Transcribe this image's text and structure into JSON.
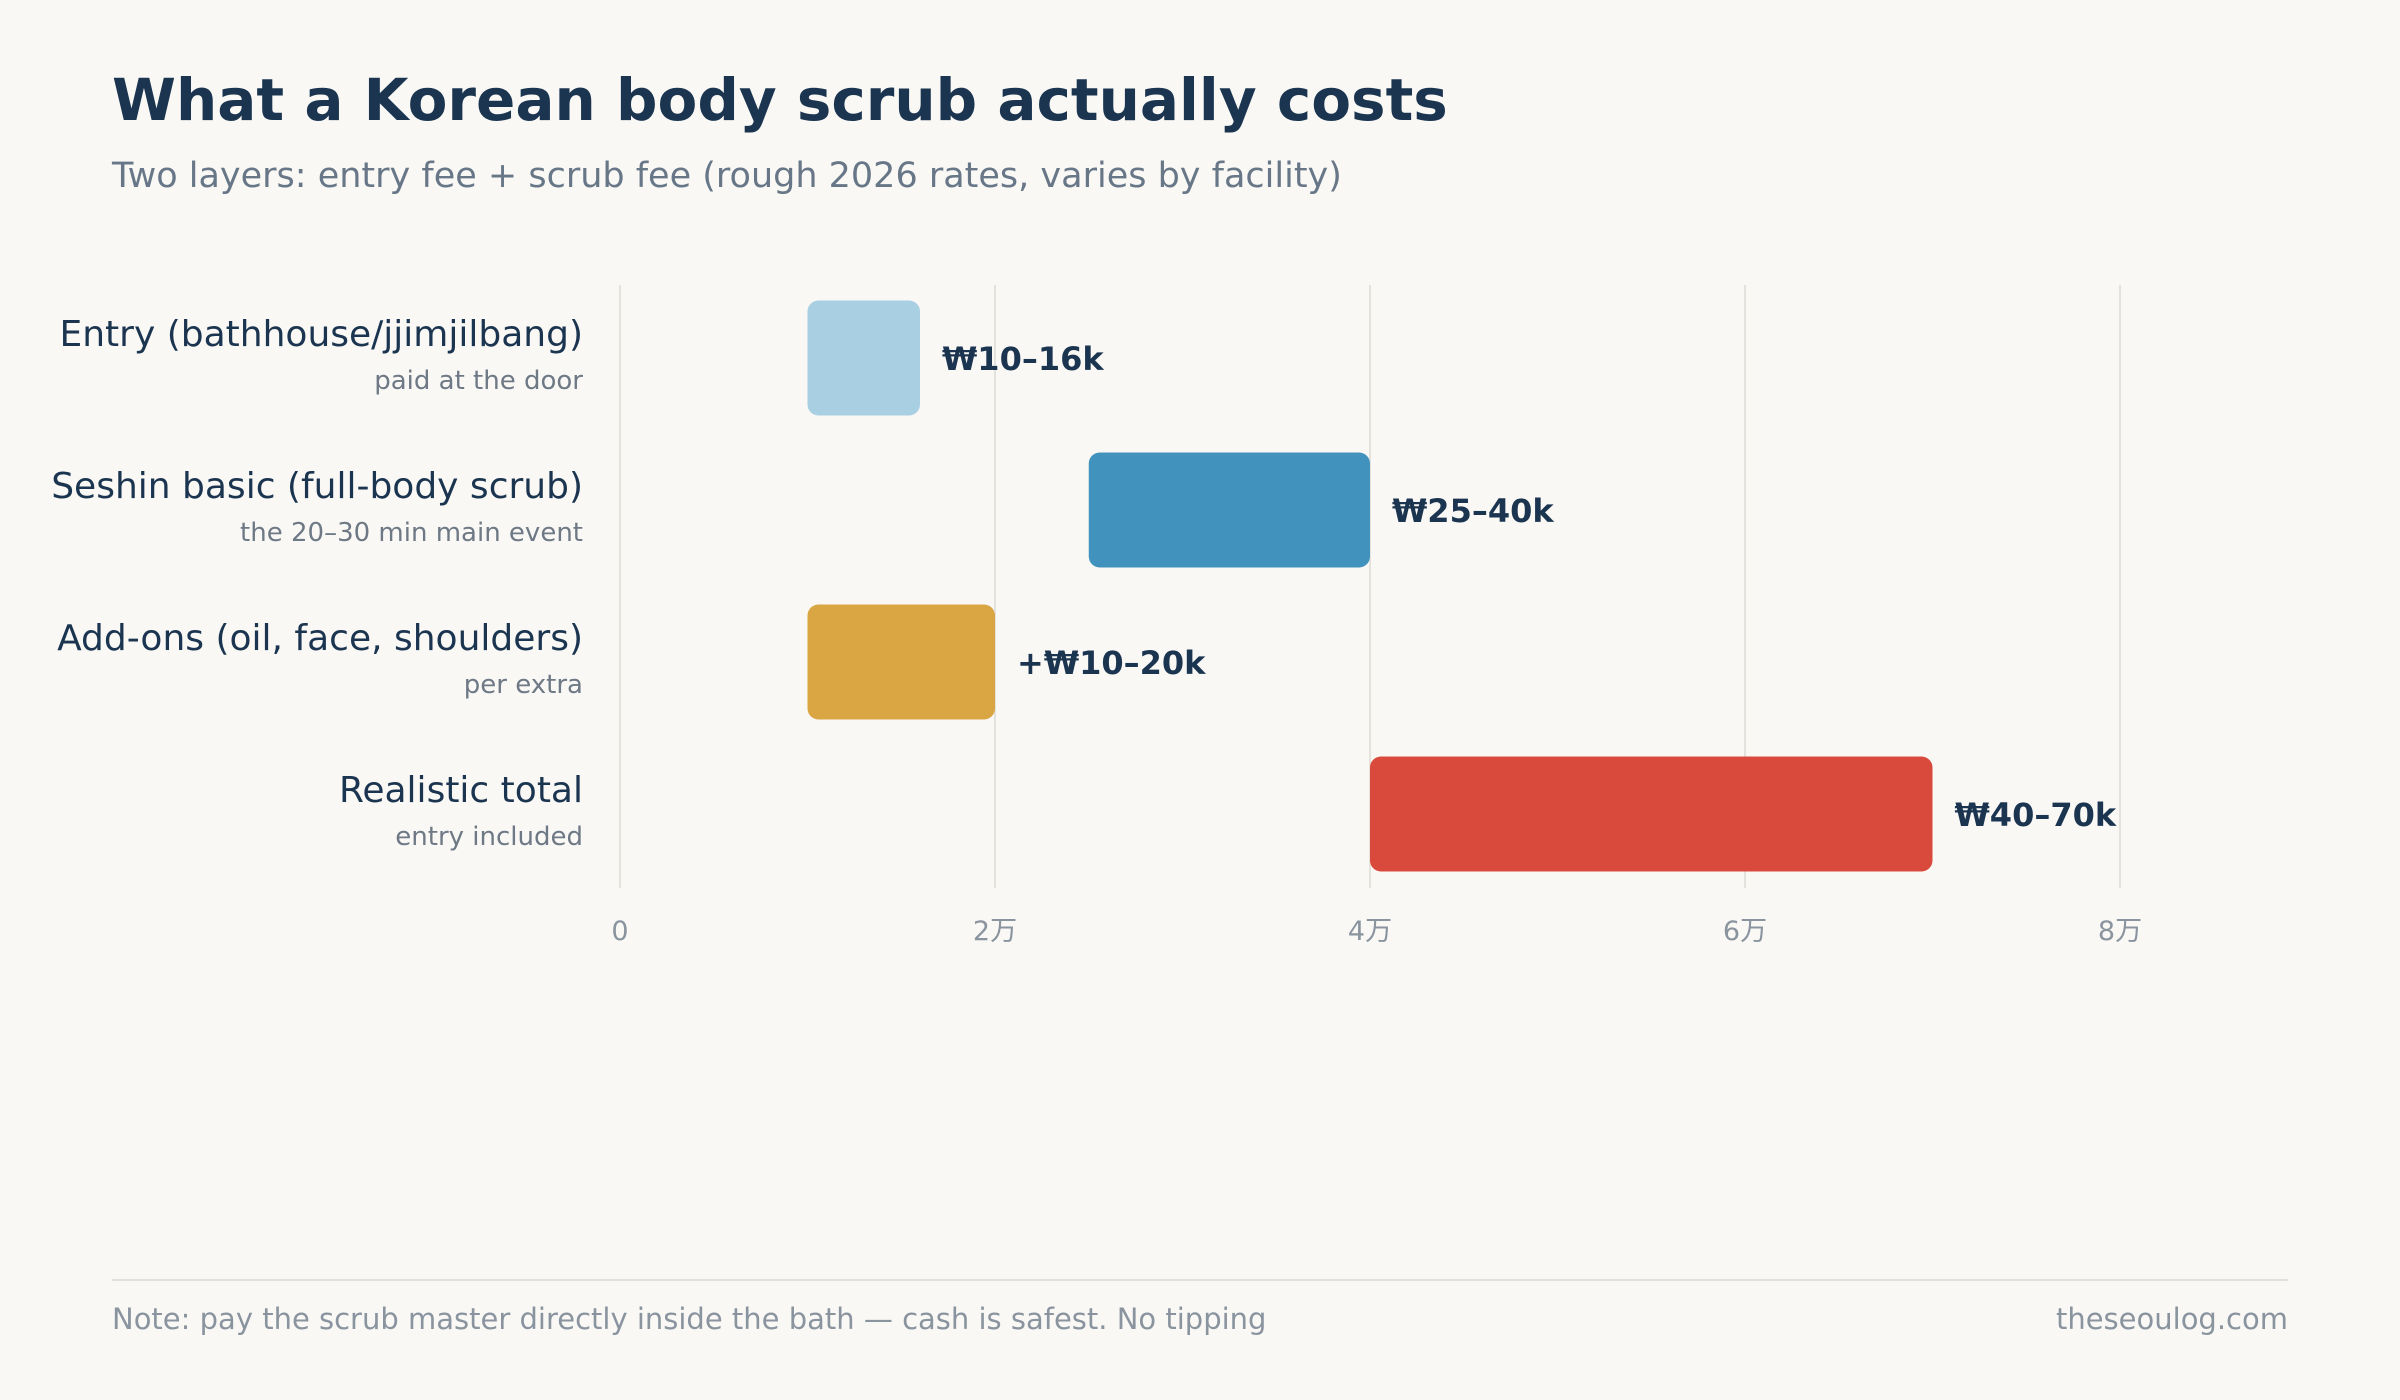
{
  "title": "What a Korean body scrub actually costs",
  "subtitle": "Two layers: entry fee + scrub fee (rough 2026 rates, varies by facility)",
  "chart_data": {
    "type": "bar",
    "orientation": "horizontal-range",
    "grid": true,
    "xlim": [
      0,
      80000
    ],
    "ticks": [
      {
        "value": 0,
        "label": "0"
      },
      {
        "value": 20000,
        "label": "2万"
      },
      {
        "value": 40000,
        "label": "4万"
      },
      {
        "value": 60000,
        "label": "6万"
      },
      {
        "value": 80000,
        "label": "8万"
      }
    ],
    "bars": [
      {
        "label": "Entry (bathhouse/jjimjilbang)",
        "sublabel": "paid at the door",
        "low": 10000,
        "high": 16000,
        "value_label": "₩10–16k",
        "color": "#a9cfe2"
      },
      {
        "label": "Seshin basic (full-body scrub)",
        "sublabel": "the 20–30 min main event",
        "low": 25000,
        "high": 40000,
        "value_label": "₩25–40k",
        "color": "#4193bd"
      },
      {
        "label": "Add-ons (oil, face, shoulders)",
        "sublabel": "per extra",
        "low": 10000,
        "high": 20000,
        "value_label": "+₩10–20k",
        "color": "#d9a643"
      },
      {
        "label": "Realistic total",
        "sublabel": "entry included",
        "low": 40000,
        "high": 70000,
        "value_label": "₩40–70k",
        "color": "#da4a3c"
      }
    ]
  },
  "footer": {
    "note": "Note: pay the scrub master directly inside the bath — cash is safest. No tipping",
    "site": "theseoulog.com"
  }
}
